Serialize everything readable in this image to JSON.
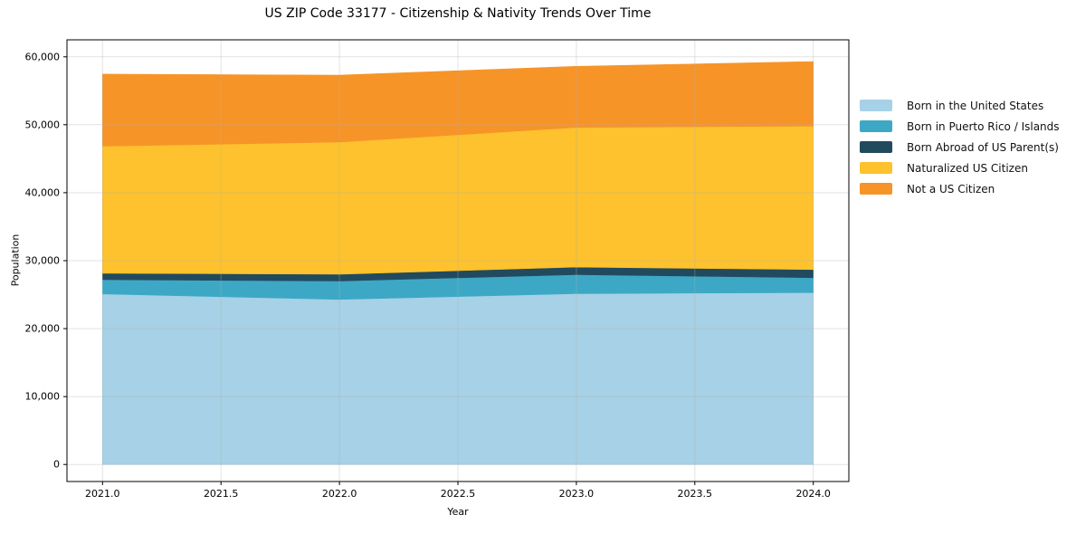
{
  "chart_data": {
    "type": "area",
    "stacked": true,
    "title": "US ZIP Code 33177 - Citizenship & Nativity Trends Over Time",
    "xlabel": "Year",
    "ylabel": "Population",
    "x": [
      2021,
      2022,
      2023,
      2024
    ],
    "series": [
      {
        "name": "Born in the United States",
        "color": "#a6d1e6",
        "values": [
          25100,
          24300,
          25150,
          25300
        ]
      },
      {
        "name": "Born in Puerto Rico / Islands",
        "color": "#3da8c5",
        "values": [
          2100,
          2700,
          2800,
          2200
        ]
      },
      {
        "name": "Born Abroad of US Parent(s)",
        "color": "#224a5e",
        "values": [
          950,
          1000,
          1100,
          1200
        ]
      },
      {
        "name": "Naturalized US Citizen",
        "color": "#fdc22d",
        "values": [
          18700,
          19450,
          20550,
          21100
        ]
      },
      {
        "name": "Not a US Citizen",
        "color": "#f79428",
        "values": [
          10600,
          9850,
          9000,
          9500
        ]
      }
    ],
    "xlim": [
      2020.85,
      2024.15
    ],
    "ylim": [
      -2500,
      62500
    ],
    "xticks": {
      "values": [
        2021,
        2021.5,
        2022,
        2022.5,
        2023,
        2023.5,
        2024
      ],
      "labels": [
        "2021.0",
        "2021.5",
        "2022.0",
        "2022.5",
        "2023.0",
        "2023.5",
        "2024.0"
      ]
    },
    "yticks": {
      "values": [
        0,
        10000,
        20000,
        30000,
        40000,
        50000,
        60000
      ],
      "labels": [
        "0",
        "10,000",
        "20,000",
        "30,000",
        "40,000",
        "50,000",
        "60,000"
      ]
    },
    "grid": true,
    "legend_position": "right-outside"
  }
}
